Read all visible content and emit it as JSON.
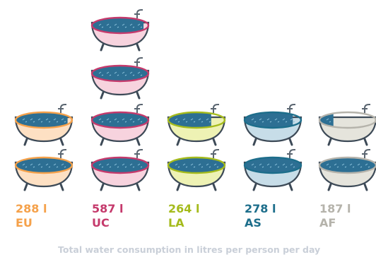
{
  "chart_data": {
    "type": "pictogram",
    "unit": "l",
    "caption": "Total water consumption in litres per person per day",
    "bathtub_litres": 150,
    "categories": [
      {
        "region": "EU",
        "value": 288,
        "value_label": "288 l",
        "color": "#f5a14a",
        "fill": "#fde0c3"
      },
      {
        "region": "UC",
        "value": 587,
        "value_label": "587 l",
        "color": "#c53a6c",
        "fill": "#f7d3de"
      },
      {
        "region": "LA",
        "value": 264,
        "value_label": "264 l",
        "color": "#a5bb1c",
        "fill": "#eef2b4"
      },
      {
        "region": "AS",
        "value": 278,
        "value_label": "278 l",
        "color": "#1d6e8b",
        "fill": "#c7dde8"
      },
      {
        "region": "AF",
        "value": 187,
        "value_label": "187 l",
        "color": "#b5b3ab",
        "fill": "#e5e4dc"
      }
    ]
  }
}
